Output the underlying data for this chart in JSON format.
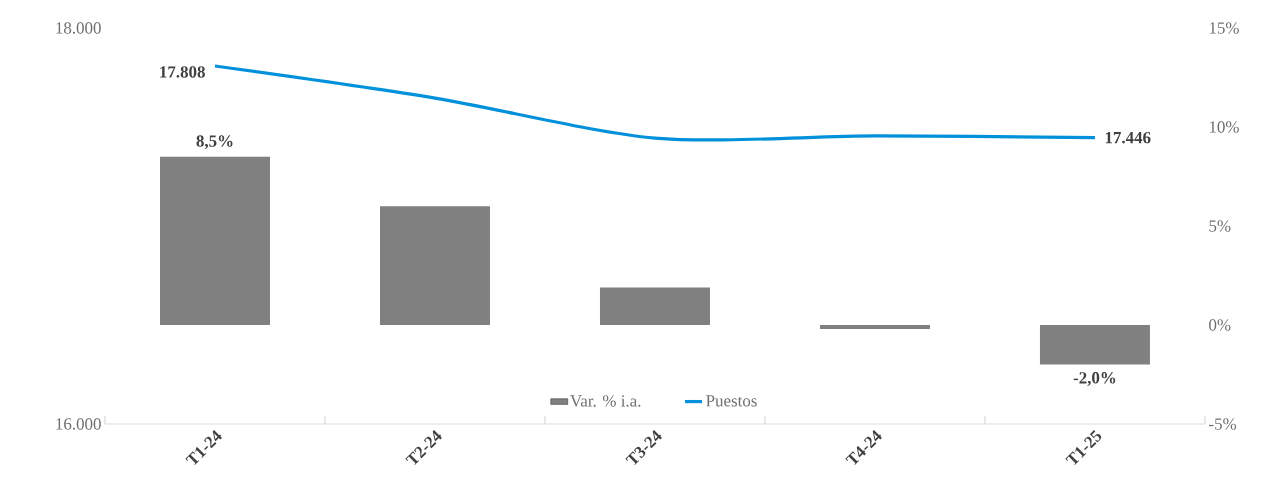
{
  "chart_data": {
    "type": "bar",
    "categories": [
      "T1-24",
      "T2-24",
      "T3-24",
      "T4-24",
      "T1-25"
    ],
    "series": [
      {
        "name": "Var. % i.a.",
        "axis": "y2",
        "color": "#808080",
        "values": [
          8.5,
          6.0,
          1.9,
          -0.2,
          -2.0
        ],
        "value_labels": [
          "8,5%",
          null,
          null,
          null,
          "-2,0%"
        ]
      },
      {
        "name": "Puestos",
        "type": "line",
        "axis": "y",
        "color": "#0091da",
        "values": [
          17808,
          17646,
          17444,
          17455,
          17446
        ],
        "value_labels": [
          "17.808",
          null,
          null,
          null,
          "17.446"
        ]
      }
    ],
    "ylim": [
      16000,
      18000
    ],
    "yticks": [
      {
        "value": 16000,
        "label": "16.000"
      },
      {
        "value": 18000,
        "label": "18.000"
      }
    ],
    "y2lim": [
      -5,
      15
    ],
    "y2ticks": [
      {
        "value": -5,
        "label": "-5%"
      },
      {
        "value": 0,
        "label": "0%"
      },
      {
        "value": 5,
        "label": "5%"
      },
      {
        "value": 10,
        "label": "10%"
      },
      {
        "value": 15,
        "label": "15%"
      }
    ],
    "legend": "bottom"
  }
}
